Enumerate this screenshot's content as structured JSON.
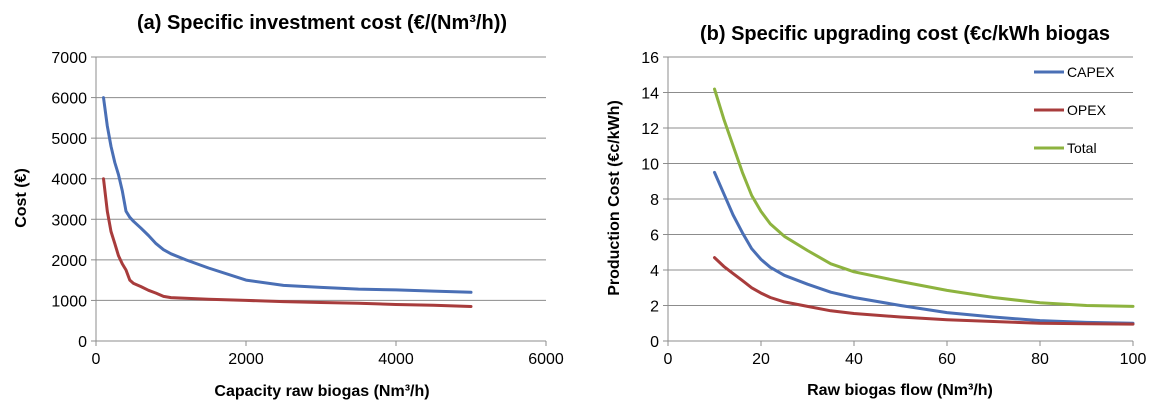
{
  "chart_data": [
    {
      "type": "line",
      "title": "(a) Specific investment cost (€/(Nm³/h))",
      "xlabel": "Capacity raw biogas (Nm³/h)",
      "ylabel": "Cost (€)",
      "xlim": [
        0,
        6000
      ],
      "ylim": [
        0,
        7000
      ],
      "xticks": [
        0,
        2000,
        4000,
        6000
      ],
      "yticks": [
        0,
        1000,
        2000,
        3000,
        4000,
        5000,
        6000,
        7000
      ],
      "grid": true,
      "legend": "none",
      "series": [
        {
          "color": "#4a6fb5",
          "points": [
            [
              100,
              6000
            ],
            [
              150,
              5300
            ],
            [
              200,
              4800
            ],
            [
              250,
              4400
            ],
            [
              300,
              4100
            ],
            [
              350,
              3700
            ],
            [
              400,
              3200
            ],
            [
              450,
              3050
            ],
            [
              500,
              2950
            ],
            [
              600,
              2780
            ],
            [
              700,
              2600
            ],
            [
              800,
              2400
            ],
            [
              900,
              2250
            ],
            [
              1000,
              2150
            ],
            [
              1200,
              2000
            ],
            [
              1500,
              1800
            ],
            [
              2000,
              1500
            ],
            [
              2500,
              1370
            ],
            [
              3000,
              1320
            ],
            [
              3500,
              1280
            ],
            [
              4000,
              1260
            ],
            [
              4500,
              1230
            ],
            [
              5000,
              1200
            ]
          ]
        },
        {
          "color": "#a83c3c",
          "points": [
            [
              100,
              4000
            ],
            [
              150,
              3200
            ],
            [
              200,
              2700
            ],
            [
              250,
              2400
            ],
            [
              300,
              2100
            ],
            [
              350,
              1900
            ],
            [
              400,
              1750
            ],
            [
              450,
              1500
            ],
            [
              500,
              1420
            ],
            [
              600,
              1340
            ],
            [
              700,
              1250
            ],
            [
              800,
              1180
            ],
            [
              900,
              1100
            ],
            [
              1000,
              1070
            ],
            [
              1500,
              1030
            ],
            [
              2000,
              1000
            ],
            [
              2500,
              970
            ],
            [
              3000,
              950
            ],
            [
              3500,
              930
            ],
            [
              4000,
              900
            ],
            [
              4500,
              880
            ],
            [
              5000,
              850
            ]
          ]
        }
      ]
    },
    {
      "type": "line",
      "title": "(b) Specific upgrading cost (€c/kWh biogas",
      "xlabel": "Raw biogas flow (Nm³/h)",
      "ylabel": "Production Cost (€c/kWh)",
      "xlim": [
        0,
        100
      ],
      "ylim": [
        0,
        16
      ],
      "xticks": [
        0,
        20,
        40,
        60,
        80,
        100
      ],
      "yticks": [
        0,
        2,
        4,
        6,
        8,
        10,
        12,
        14,
        16
      ],
      "grid": true,
      "legend": "right",
      "series": [
        {
          "name": "CAPEX",
          "color": "#4a6fb5",
          "points": [
            [
              10,
              9.5
            ],
            [
              12,
              8.3
            ],
            [
              14,
              7.1
            ],
            [
              16,
              6.1
            ],
            [
              18,
              5.2
            ],
            [
              20,
              4.6
            ],
            [
              22,
              4.15
            ],
            [
              25,
              3.7
            ],
            [
              30,
              3.2
            ],
            [
              35,
              2.75
            ],
            [
              40,
              2.45
            ],
            [
              50,
              2.0
            ],
            [
              60,
              1.6
            ],
            [
              70,
              1.35
            ],
            [
              80,
              1.15
            ],
            [
              90,
              1.05
            ],
            [
              100,
              1.0
            ]
          ]
        },
        {
          "name": "OPEX",
          "color": "#a83c3c",
          "points": [
            [
              10,
              4.7
            ],
            [
              12,
              4.2
            ],
            [
              14,
              3.8
            ],
            [
              16,
              3.4
            ],
            [
              18,
              3.0
            ],
            [
              20,
              2.7
            ],
            [
              22,
              2.45
            ],
            [
              25,
              2.2
            ],
            [
              30,
              1.95
            ],
            [
              35,
              1.7
            ],
            [
              40,
              1.55
            ],
            [
              50,
              1.35
            ],
            [
              60,
              1.2
            ],
            [
              70,
              1.1
            ],
            [
              80,
              1.0
            ],
            [
              90,
              0.97
            ],
            [
              100,
              0.95
            ]
          ]
        },
        {
          "name": "Total",
          "color": "#8db33f",
          "points": [
            [
              10,
              14.2
            ],
            [
              12,
              12.5
            ],
            [
              14,
              11.0
            ],
            [
              16,
              9.5
            ],
            [
              18,
              8.2
            ],
            [
              20,
              7.3
            ],
            [
              22,
              6.6
            ],
            [
              25,
              5.9
            ],
            [
              30,
              5.1
            ],
            [
              35,
              4.35
            ],
            [
              40,
              3.9
            ],
            [
              50,
              3.35
            ],
            [
              60,
              2.85
            ],
            [
              70,
              2.45
            ],
            [
              80,
              2.15
            ],
            [
              90,
              2.0
            ],
            [
              100,
              1.95
            ]
          ]
        }
      ]
    }
  ]
}
